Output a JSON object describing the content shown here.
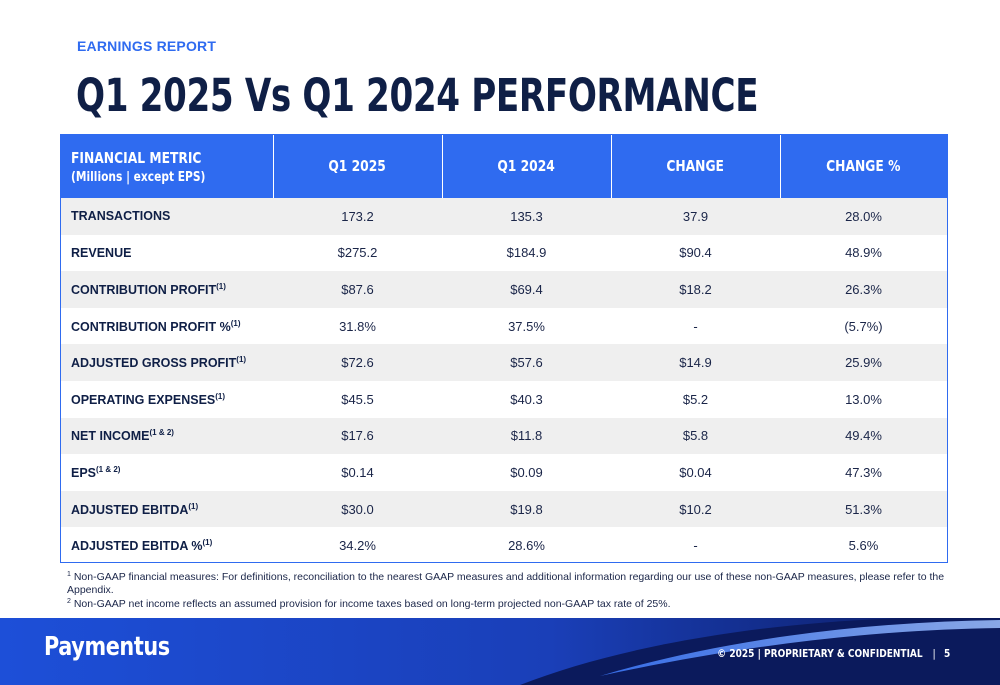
{
  "eyebrow": "EARNINGS REPORT",
  "title": "Q1 2025 Vs Q1 2024 PERFORMANCE",
  "table": {
    "header": {
      "metric": "FINANCIAL METRIC",
      "metric_sub": "(Millions | except EPS)",
      "q1_2025": "Q1 2025",
      "q1_2024": "Q1 2024",
      "change": "CHANGE",
      "change_pct": "CHANGE %"
    },
    "rows": [
      {
        "metric": "TRANSACTIONS",
        "note": "",
        "q1_2025": "173.2",
        "q1_2024": "135.3",
        "change": "37.9",
        "change_pct": "28.0%"
      },
      {
        "metric": "REVENUE",
        "note": "",
        "q1_2025": "$275.2",
        "q1_2024": "$184.9",
        "change": "$90.4",
        "change_pct": "48.9%"
      },
      {
        "metric": "CONTRIBUTION PROFIT",
        "note": "(1)",
        "q1_2025": "$87.6",
        "q1_2024": "$69.4",
        "change": "$18.2",
        "change_pct": "26.3%"
      },
      {
        "metric": "CONTRIBUTION PROFIT %",
        "note": "(1)",
        "q1_2025": "31.8%",
        "q1_2024": "37.5%",
        "change": "-",
        "change_pct": "(5.7%)"
      },
      {
        "metric": "ADJUSTED GROSS PROFIT",
        "note": "(1)",
        "q1_2025": "$72.6",
        "q1_2024": "$57.6",
        "change": "$14.9",
        "change_pct": "25.9%"
      },
      {
        "metric": "OPERATING EXPENSES",
        "note": "(1)",
        "q1_2025": "$45.5",
        "q1_2024": "$40.3",
        "change": "$5.2",
        "change_pct": "13.0%"
      },
      {
        "metric": "NET INCOME",
        "note": "(1 & 2)",
        "q1_2025": "$17.6",
        "q1_2024": "$11.8",
        "change": "$5.8",
        "change_pct": "49.4%"
      },
      {
        "metric": "EPS",
        "note": "(1 & 2)",
        "q1_2025": "$0.14",
        "q1_2024": "$0.09",
        "change": "$0.04",
        "change_pct": "47.3%"
      },
      {
        "metric": "ADJUSTED EBITDA",
        "note": "(1)",
        "q1_2025": "$30.0",
        "q1_2024": "$19.8",
        "change": "$10.2",
        "change_pct": "51.3%"
      },
      {
        "metric": "ADJUSTED EBITDA %",
        "note": "(1)",
        "q1_2025": "34.2%",
        "q1_2024": "28.6%",
        "change": "-",
        "change_pct": "5.6%"
      }
    ]
  },
  "footnotes": [
    {
      "mark": "1",
      "text": "Non-GAAP financial measures: For definitions, reconciliation to the nearest GAAP measures and additional information regarding our use of these non-GAAP measures, please refer to the Appendix."
    },
    {
      "mark": "2",
      "text": "Non-GAAP net income reflects an assumed provision for income taxes based on long-term projected non-GAAP tax rate of 25%."
    }
  ],
  "footer": {
    "logo": "Paymentus",
    "copyright": "© 2025 | PROPRIETARY & CONFIDENTIAL",
    "separator": "|",
    "page_number": "5"
  },
  "colors": {
    "accent": "#2f6bf0",
    "navy": "#0f1f46",
    "footer_dark": "#0b1a5c",
    "row_alt": "#efefef"
  }
}
